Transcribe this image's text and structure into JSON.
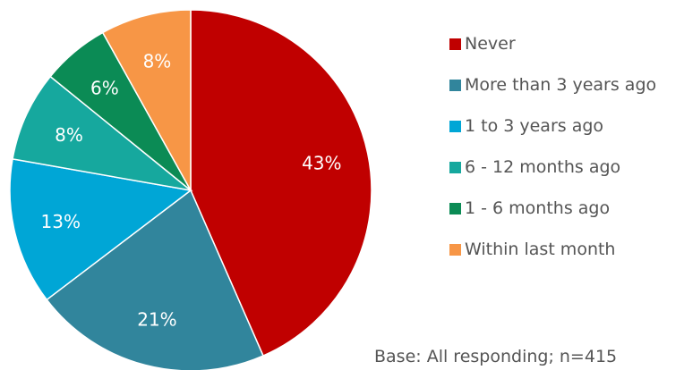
{
  "chart_data": {
    "type": "pie",
    "categories": [
      "Never",
      "More than 3 years ago",
      "1 to 3 years ago",
      "6 - 12 months ago",
      "1 - 6 months ago",
      "Within last month"
    ],
    "values": [
      43,
      21,
      13,
      8,
      6,
      8
    ],
    "value_labels": [
      "43%",
      "21%",
      "13%",
      "8%",
      "6%",
      "8%"
    ],
    "colors": [
      "#c00000",
      "#31859c",
      "#00a6d6",
      "#16a89e",
      "#0b8b55",
      "#f79646"
    ],
    "legend_position": "right",
    "start_angle": "top, clockwise"
  },
  "legend": {
    "items": [
      {
        "label": "Never",
        "color": "#c00000"
      },
      {
        "label": "More than 3 years ago",
        "color": "#31859c"
      },
      {
        "label": "1 to 3 years ago",
        "color": "#00a6d6"
      },
      {
        "label": "6 - 12 months ago",
        "color": "#16a89e"
      },
      {
        "label": "1 - 6 months ago",
        "color": "#0b8b55"
      },
      {
        "label": "Within last month",
        "color": "#f79646"
      }
    ]
  },
  "base_note": "Base: All responding; n=415"
}
